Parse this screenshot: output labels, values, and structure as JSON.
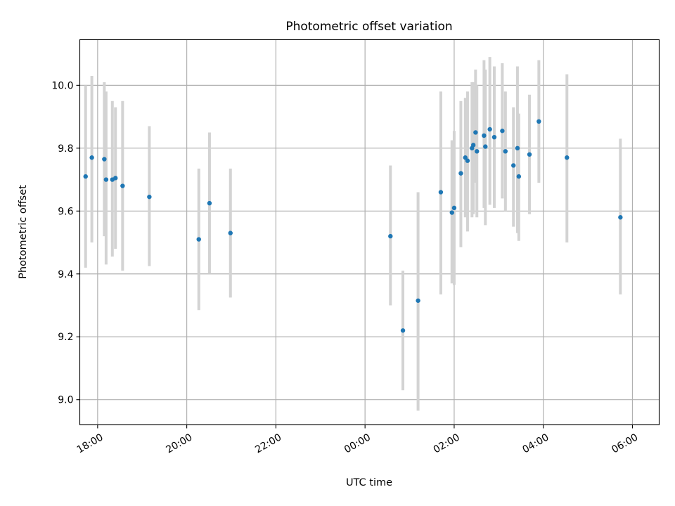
{
  "chart_data": {
    "type": "scatter",
    "title": "Photometric offset variation",
    "xlabel": "UTC time",
    "ylabel": "Photometric offset",
    "xlim": [
      -6.4,
      6.6
    ],
    "ylim": [
      8.92,
      10.145
    ],
    "grid": true,
    "x_ticks": [
      {
        "value": -6,
        "label": "18:00"
      },
      {
        "value": -4,
        "label": "20:00"
      },
      {
        "value": -2,
        "label": "22:00"
      },
      {
        "value": 0,
        "label": "00:00"
      },
      {
        "value": 2,
        "label": "02:00"
      },
      {
        "value": 4,
        "label": "04:00"
      },
      {
        "value": 6,
        "label": "06:00"
      }
    ],
    "y_ticks": [
      {
        "value": 9.0,
        "label": "9.0"
      },
      {
        "value": 9.2,
        "label": "9.2"
      },
      {
        "value": 9.4,
        "label": "9.4"
      },
      {
        "value": 9.6,
        "label": "9.6"
      },
      {
        "value": 9.8,
        "label": "9.8"
      },
      {
        "value": 10.0,
        "label": "10.0"
      }
    ],
    "x_units": "hours relative to 00:00 UTC",
    "colors": {
      "point": "#1f77b4",
      "errorbar": "#d3d3d3",
      "grid": "#b0b0b0"
    },
    "points": [
      {
        "x": -6.27,
        "y": 9.71,
        "ylow": 9.42,
        "yhigh": 10.0
      },
      {
        "x": -6.13,
        "y": 9.77,
        "ylow": 9.5,
        "yhigh": 10.03
      },
      {
        "x": -5.85,
        "y": 9.765,
        "ylow": 9.52,
        "yhigh": 10.01
      },
      {
        "x": -5.81,
        "y": 9.7,
        "ylow": 9.43,
        "yhigh": 9.98
      },
      {
        "x": -5.67,
        "y": 9.7,
        "ylow": 9.455,
        "yhigh": 9.95
      },
      {
        "x": -5.6,
        "y": 9.705,
        "ylow": 9.48,
        "yhigh": 9.93
      },
      {
        "x": -5.44,
        "y": 9.68,
        "ylow": 9.41,
        "yhigh": 9.95
      },
      {
        "x": -4.84,
        "y": 9.645,
        "ylow": 9.425,
        "yhigh": 9.87
      },
      {
        "x": -3.73,
        "y": 9.51,
        "ylow": 9.285,
        "yhigh": 9.735
      },
      {
        "x": -3.49,
        "y": 9.625,
        "ylow": 9.4,
        "yhigh": 9.85
      },
      {
        "x": -3.02,
        "y": 9.53,
        "ylow": 9.325,
        "yhigh": 9.735
      },
      {
        "x": 0.57,
        "y": 9.52,
        "ylow": 9.3,
        "yhigh": 9.745
      },
      {
        "x": 0.85,
        "y": 9.22,
        "ylow": 9.03,
        "yhigh": 9.41
      },
      {
        "x": 1.19,
        "y": 9.315,
        "ylow": 8.965,
        "yhigh": 9.66
      },
      {
        "x": 1.7,
        "y": 9.66,
        "ylow": 9.335,
        "yhigh": 9.98
      },
      {
        "x": 1.95,
        "y": 9.595,
        "ylow": 9.37,
        "yhigh": 9.825
      },
      {
        "x": 2.0,
        "y": 9.61,
        "ylow": 9.365,
        "yhigh": 9.855
      },
      {
        "x": 2.15,
        "y": 9.72,
        "ylow": 9.485,
        "yhigh": 9.95
      },
      {
        "x": 2.25,
        "y": 9.77,
        "ylow": 9.58,
        "yhigh": 9.96
      },
      {
        "x": 2.3,
        "y": 9.76,
        "ylow": 9.535,
        "yhigh": 9.98
      },
      {
        "x": 2.4,
        "y": 9.8,
        "ylow": 9.58,
        "yhigh": 10.01
      },
      {
        "x": 2.43,
        "y": 9.81,
        "ylow": 9.59,
        "yhigh": 10.01
      },
      {
        "x": 2.48,
        "y": 9.85,
        "ylow": 9.69,
        "yhigh": 10.05
      },
      {
        "x": 2.51,
        "y": 9.79,
        "ylow": 9.58,
        "yhigh": 10.0
      },
      {
        "x": 2.67,
        "y": 9.84,
        "ylow": 9.61,
        "yhigh": 10.08
      },
      {
        "x": 2.7,
        "y": 9.805,
        "ylow": 9.555,
        "yhigh": 10.05
      },
      {
        "x": 2.8,
        "y": 9.86,
        "ylow": 9.62,
        "yhigh": 10.09
      },
      {
        "x": 2.9,
        "y": 9.835,
        "ylow": 9.61,
        "yhigh": 10.06
      },
      {
        "x": 3.08,
        "y": 9.855,
        "ylow": 9.64,
        "yhigh": 10.07
      },
      {
        "x": 3.15,
        "y": 9.79,
        "ylow": 9.6,
        "yhigh": 9.98
      },
      {
        "x": 3.33,
        "y": 9.745,
        "ylow": 9.55,
        "yhigh": 9.93
      },
      {
        "x": 3.42,
        "y": 9.8,
        "ylow": 9.53,
        "yhigh": 10.06
      },
      {
        "x": 3.45,
        "y": 9.71,
        "ylow": 9.505,
        "yhigh": 9.91
      },
      {
        "x": 3.69,
        "y": 9.78,
        "ylow": 9.59,
        "yhigh": 9.97
      },
      {
        "x": 3.9,
        "y": 9.885,
        "ylow": 9.69,
        "yhigh": 10.08
      },
      {
        "x": 4.53,
        "y": 9.77,
        "ylow": 9.5,
        "yhigh": 10.035
      },
      {
        "x": 5.73,
        "y": 9.58,
        "ylow": 9.335,
        "yhigh": 9.83
      }
    ]
  }
}
